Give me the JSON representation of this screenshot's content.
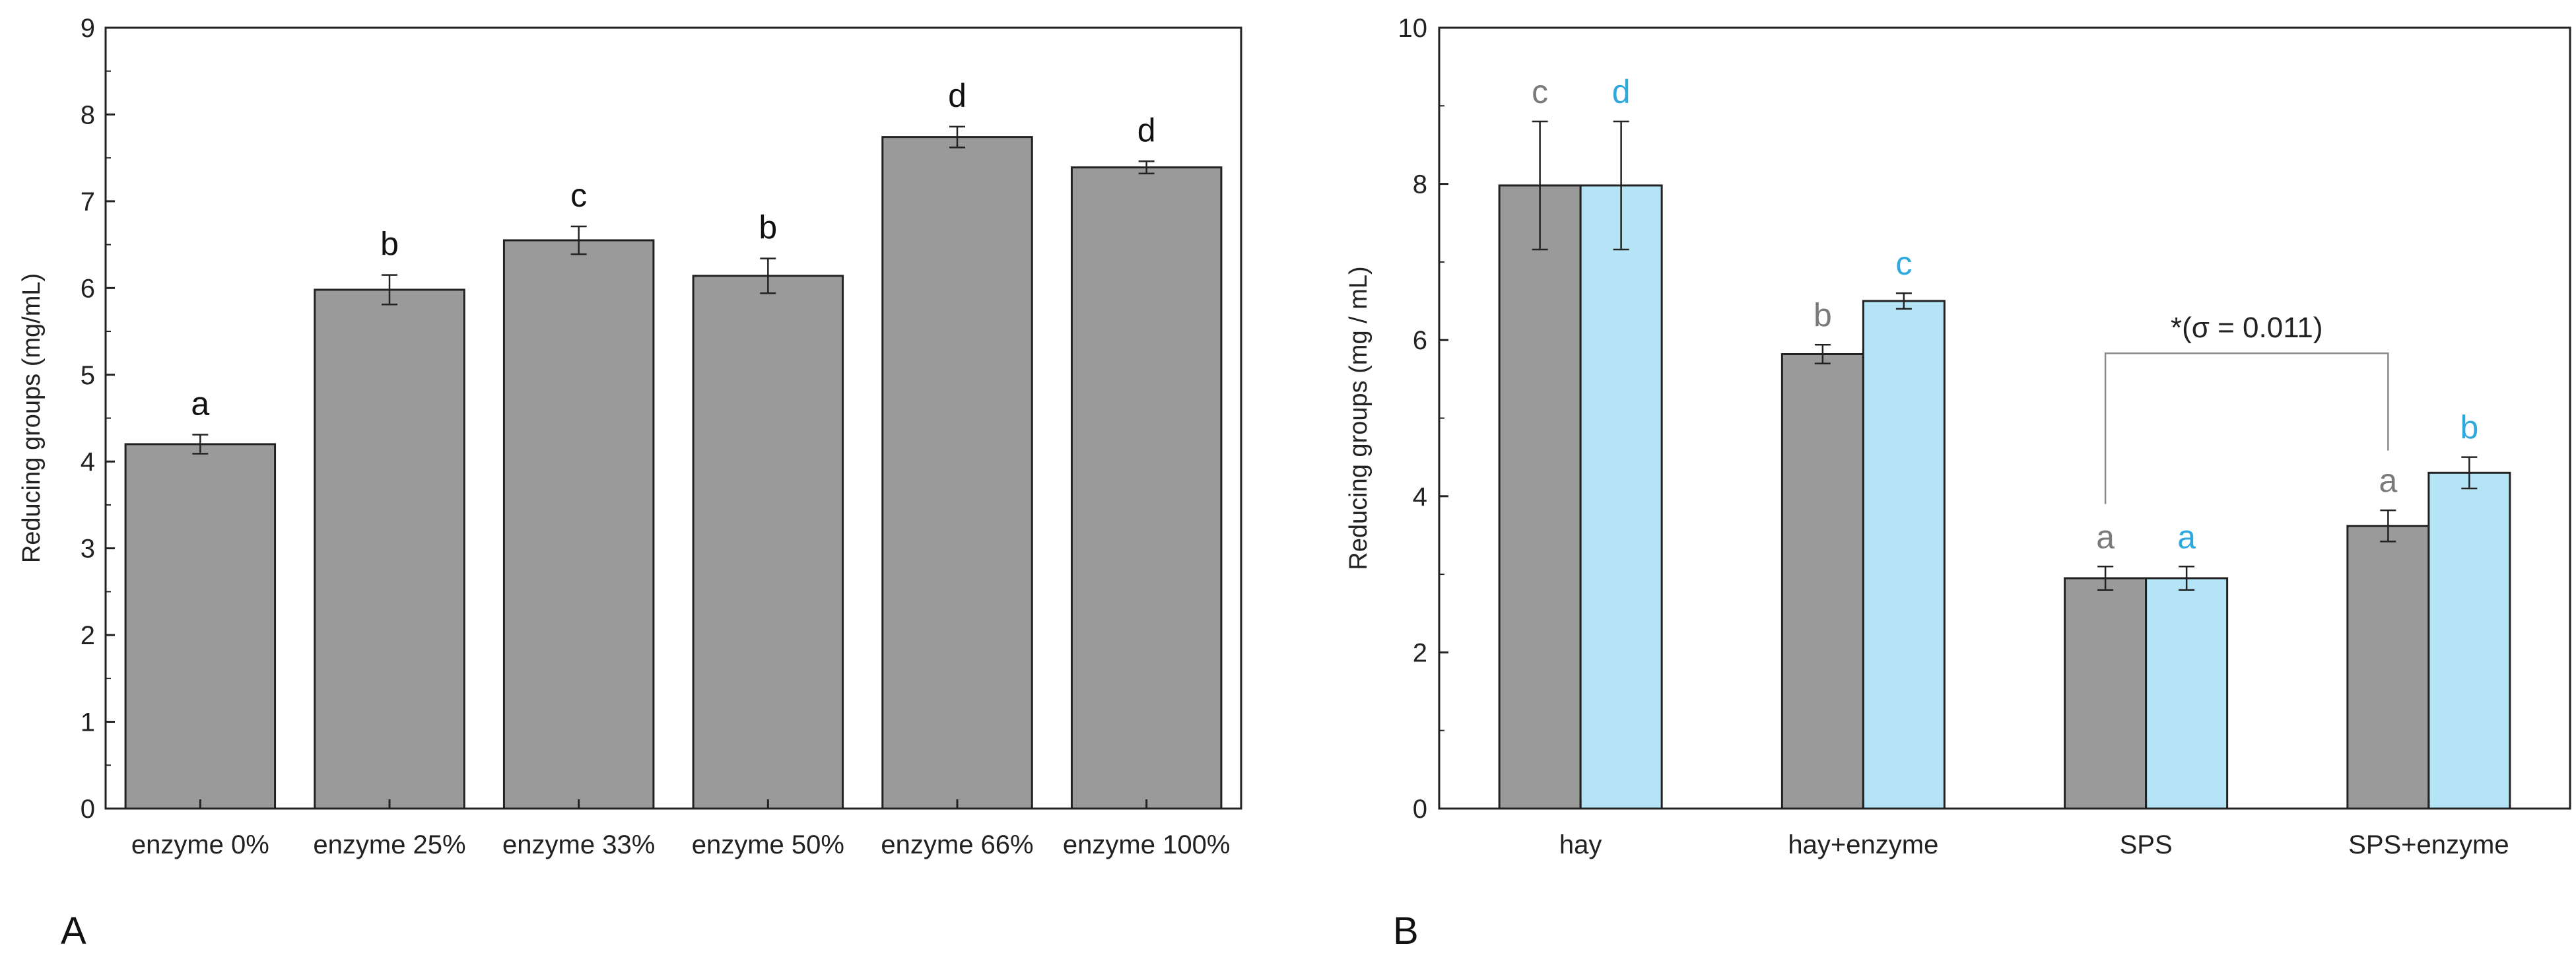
{
  "colors": {
    "gray_bar": "#9a9a9a",
    "blue_bar": "#b4e4f6",
    "blue_label": "#2ea8dd",
    "gray_label": "#7a7a7a",
    "axis": "#222222"
  },
  "panel_letters": {
    "a": "A",
    "b": "B"
  },
  "chart_data": [
    {
      "type": "bar",
      "panel": "A",
      "ylabel": "Reducing groups (mg/mL)",
      "ylim": [
        0,
        9
      ],
      "yticks": [
        0,
        1,
        2,
        3,
        4,
        5,
        6,
        7,
        8,
        9
      ],
      "categories": [
        "enzyme 0%",
        "enzyme 25%",
        "enzyme 33%",
        "enzyme 50%",
        "enzyme 66%",
        "enzyme 100%"
      ],
      "values": [
        4.2,
        5.98,
        6.55,
        6.14,
        7.74,
        7.39
      ],
      "errors": [
        0.11,
        0.17,
        0.16,
        0.2,
        0.12,
        0.07
      ],
      "significance_letters": [
        "a",
        "b",
        "c",
        "b",
        "d",
        "d"
      ]
    },
    {
      "type": "bar",
      "panel": "B",
      "ylabel": "Reducing groups (mg / mL)",
      "ylim": [
        0,
        10
      ],
      "yticks": [
        0,
        2,
        4,
        6,
        8,
        10
      ],
      "categories": [
        "hay",
        "hay+enzyme",
        "SPS",
        "SPS+enzyme"
      ],
      "series": [
        {
          "name": "gray",
          "values": [
            7.98,
            5.82,
            2.95,
            3.62
          ],
          "errors": [
            0.82,
            0.12,
            0.15,
            0.2
          ],
          "letters": [
            "c",
            "b",
            "a",
            "a"
          ]
        },
        {
          "name": "blue",
          "values": [
            7.98,
            6.5,
            2.95,
            4.3
          ],
          "errors": [
            0.82,
            0.1,
            0.15,
            0.2
          ],
          "letters": [
            "d",
            "c",
            "a",
            "b"
          ]
        }
      ],
      "annotation": "*(σ = 0.011)"
    }
  ]
}
